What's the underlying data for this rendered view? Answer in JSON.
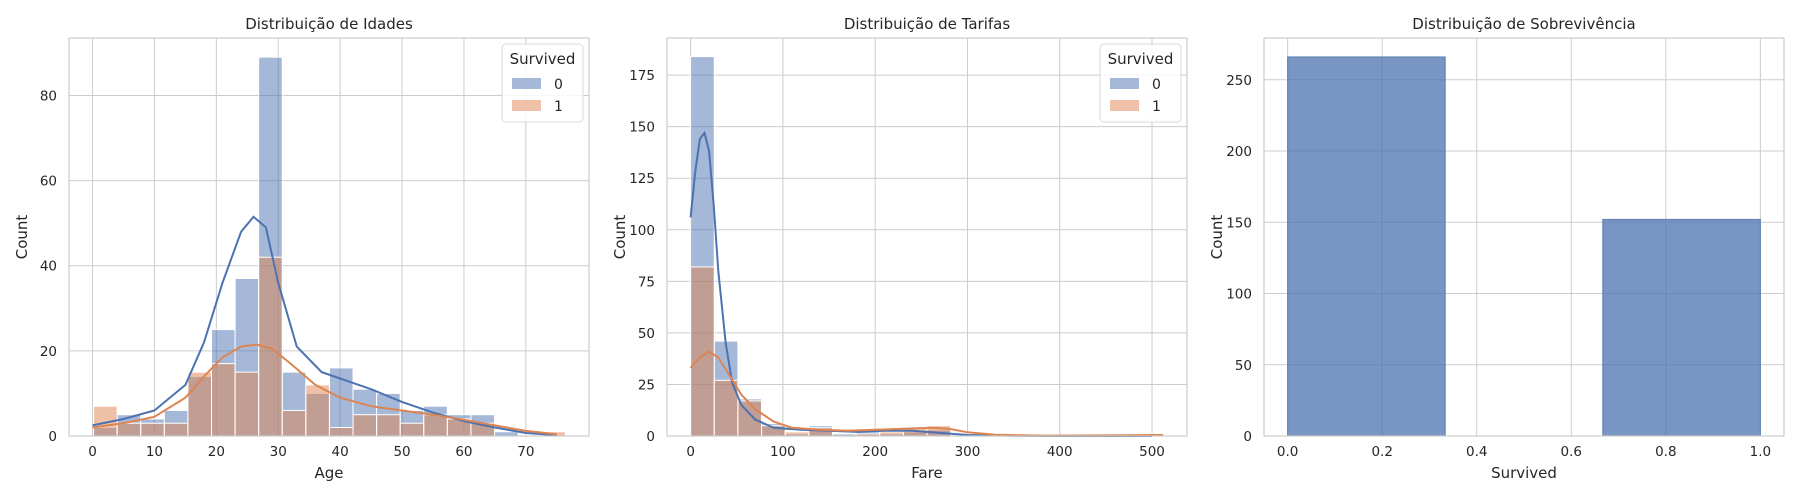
{
  "colors": {
    "series0": "#4c72b0",
    "series1": "#dd8452",
    "grid": "#cccccc",
    "axes_bg": "#ffffff"
  },
  "chart_data": [
    {
      "type": "histogram",
      "title": "Distribuição de Idades",
      "xlabel": "Age",
      "ylabel": "Count",
      "xlim": [
        -3.8,
        80.2
      ],
      "ylim": [
        0,
        93.5
      ],
      "xticks": [
        0,
        10,
        20,
        30,
        40,
        50,
        60,
        70
      ],
      "yticks": [
        0,
        20,
        40,
        60,
        80
      ],
      "grid": true,
      "legend": {
        "title": "Survived",
        "placement": "top-right"
      },
      "bin_edges": [
        0.17,
        3.98,
        7.79,
        11.6,
        15.41,
        19.22,
        23.03,
        26.84,
        30.65,
        34.46,
        38.27,
        42.08,
        45.89,
        49.7,
        53.51,
        57.32,
        61.13,
        64.94,
        68.75,
        72.56,
        76.37
      ],
      "series": [
        {
          "name": "0",
          "counts": [
            2,
            5,
            4,
            6,
            14,
            25,
            37,
            89,
            15,
            10,
            16,
            11,
            10,
            6,
            7,
            5,
            5,
            1,
            0,
            0
          ],
          "kde": [
            [
              0,
              2.5
            ],
            [
              5,
              4
            ],
            [
              10,
              6
            ],
            [
              15,
              12
            ],
            [
              18,
              22
            ],
            [
              21,
              36
            ],
            [
              24,
              48
            ],
            [
              26,
              51.5
            ],
            [
              28,
              49
            ],
            [
              30,
              36
            ],
            [
              33,
              21
            ],
            [
              37,
              15
            ],
            [
              40,
              13.5
            ],
            [
              45,
              11
            ],
            [
              50,
              8
            ],
            [
              55,
              5.5
            ],
            [
              60,
              3.5
            ],
            [
              65,
              2
            ],
            [
              70,
              0.7
            ],
            [
              75,
              0.2
            ]
          ]
        },
        {
          "name": "1",
          "counts": [
            7,
            3,
            3,
            3,
            15,
            17,
            15,
            42,
            6,
            12,
            2,
            5,
            5,
            3,
            5,
            4,
            3,
            0,
            0,
            1
          ],
          "kde": [
            [
              0,
              2
            ],
            [
              5,
              3
            ],
            [
              10,
              4.5
            ],
            [
              15,
              9
            ],
            [
              18,
              14
            ],
            [
              21,
              18.5
            ],
            [
              24,
              21
            ],
            [
              26.5,
              21.5
            ],
            [
              29,
              20.5
            ],
            [
              32,
              17
            ],
            [
              36,
              12
            ],
            [
              40,
              9
            ],
            [
              45,
              7
            ],
            [
              50,
              6
            ],
            [
              55,
              5
            ],
            [
              60,
              3.8
            ],
            [
              65,
              2.5
            ],
            [
              70,
              1.2
            ],
            [
              75,
              0.4
            ]
          ]
        }
      ]
    },
    {
      "type": "histogram",
      "title": "Distribuição de Tarifas",
      "xlabel": "Fare",
      "ylabel": "Count",
      "xlim": [
        -25.6,
        537.9
      ],
      "ylim": [
        0,
        193
      ],
      "xticks": [
        0,
        100,
        200,
        300,
        400,
        500
      ],
      "yticks": [
        0,
        25,
        50,
        75,
        100,
        125,
        150,
        175
      ],
      "grid": true,
      "legend": {
        "title": "Survived",
        "placement": "top-right"
      },
      "bin_edges": [
        0,
        25.62,
        51.23,
        76.85,
        102.47,
        128.08,
        153.7,
        179.32,
        204.93,
        230.55,
        256.16,
        281.78,
        307.4,
        333.01,
        358.63,
        384.25,
        409.86,
        435.48,
        461.1,
        486.71,
        512.33
      ],
      "series": [
        {
          "name": "0",
          "counts": [
            184,
            46,
            18,
            6,
            1,
            5,
            1,
            2,
            1,
            2,
            3,
            0,
            0,
            0,
            0,
            0,
            0,
            0,
            0,
            0
          ],
          "kde": [
            [
              0,
              106
            ],
            [
              5,
              128
            ],
            [
              10,
              144
            ],
            [
              15,
              147
            ],
            [
              20,
              138
            ],
            [
              25,
              112
            ],
            [
              30,
              80
            ],
            [
              38,
              45
            ],
            [
              45,
              26
            ],
            [
              55,
              15
            ],
            [
              70,
              8
            ],
            [
              90,
              4
            ],
            [
              120,
              3
            ],
            [
              150,
              2.5
            ],
            [
              180,
              2
            ],
            [
              210,
              2.5
            ],
            [
              240,
              2.5
            ],
            [
              270,
              1.5
            ],
            [
              300,
              0.5
            ],
            [
              350,
              0.1
            ],
            [
              400,
              0
            ],
            [
              500,
              0
            ]
          ]
        },
        {
          "name": "1",
          "counts": [
            82,
            27,
            17,
            5,
            2,
            4,
            0,
            1,
            2,
            4,
            5,
            0,
            0,
            0,
            0,
            0,
            0,
            0,
            0,
            1
          ],
          "kde": [
            [
              0,
              33
            ],
            [
              10,
              38
            ],
            [
              20,
              41
            ],
            [
              30,
              38
            ],
            [
              40,
              31
            ],
            [
              55,
              20
            ],
            [
              70,
              13
            ],
            [
              90,
              7
            ],
            [
              110,
              4
            ],
            [
              140,
              3
            ],
            [
              170,
              2.5
            ],
            [
              200,
              3
            ],
            [
              230,
              3.5
            ],
            [
              260,
              4
            ],
            [
              280,
              3.5
            ],
            [
              300,
              1.8
            ],
            [
              330,
              0.6
            ],
            [
              380,
              0.2
            ],
            [
              450,
              0.3
            ],
            [
              500,
              0.5
            ],
            [
              512,
              0.5
            ]
          ]
        }
      ]
    },
    {
      "type": "histogram",
      "title": "Distribuição de Sobrevivência",
      "xlabel": "Survived",
      "ylabel": "Count",
      "xlim": [
        -0.05,
        1.05
      ],
      "ylim": [
        0,
        279.3
      ],
      "xticks": [
        0.0,
        0.2,
        0.4,
        0.6,
        0.8,
        1.0
      ],
      "yticks": [
        0,
        50,
        100,
        150,
        200,
        250
      ],
      "grid": true,
      "bars": [
        {
          "x0": 0.0,
          "x1": 0.3333,
          "value": 266
        },
        {
          "x0": 0.3333,
          "x1": 0.6667,
          "value": 0
        },
        {
          "x0": 0.6667,
          "x1": 1.0,
          "value": 152
        }
      ]
    }
  ]
}
